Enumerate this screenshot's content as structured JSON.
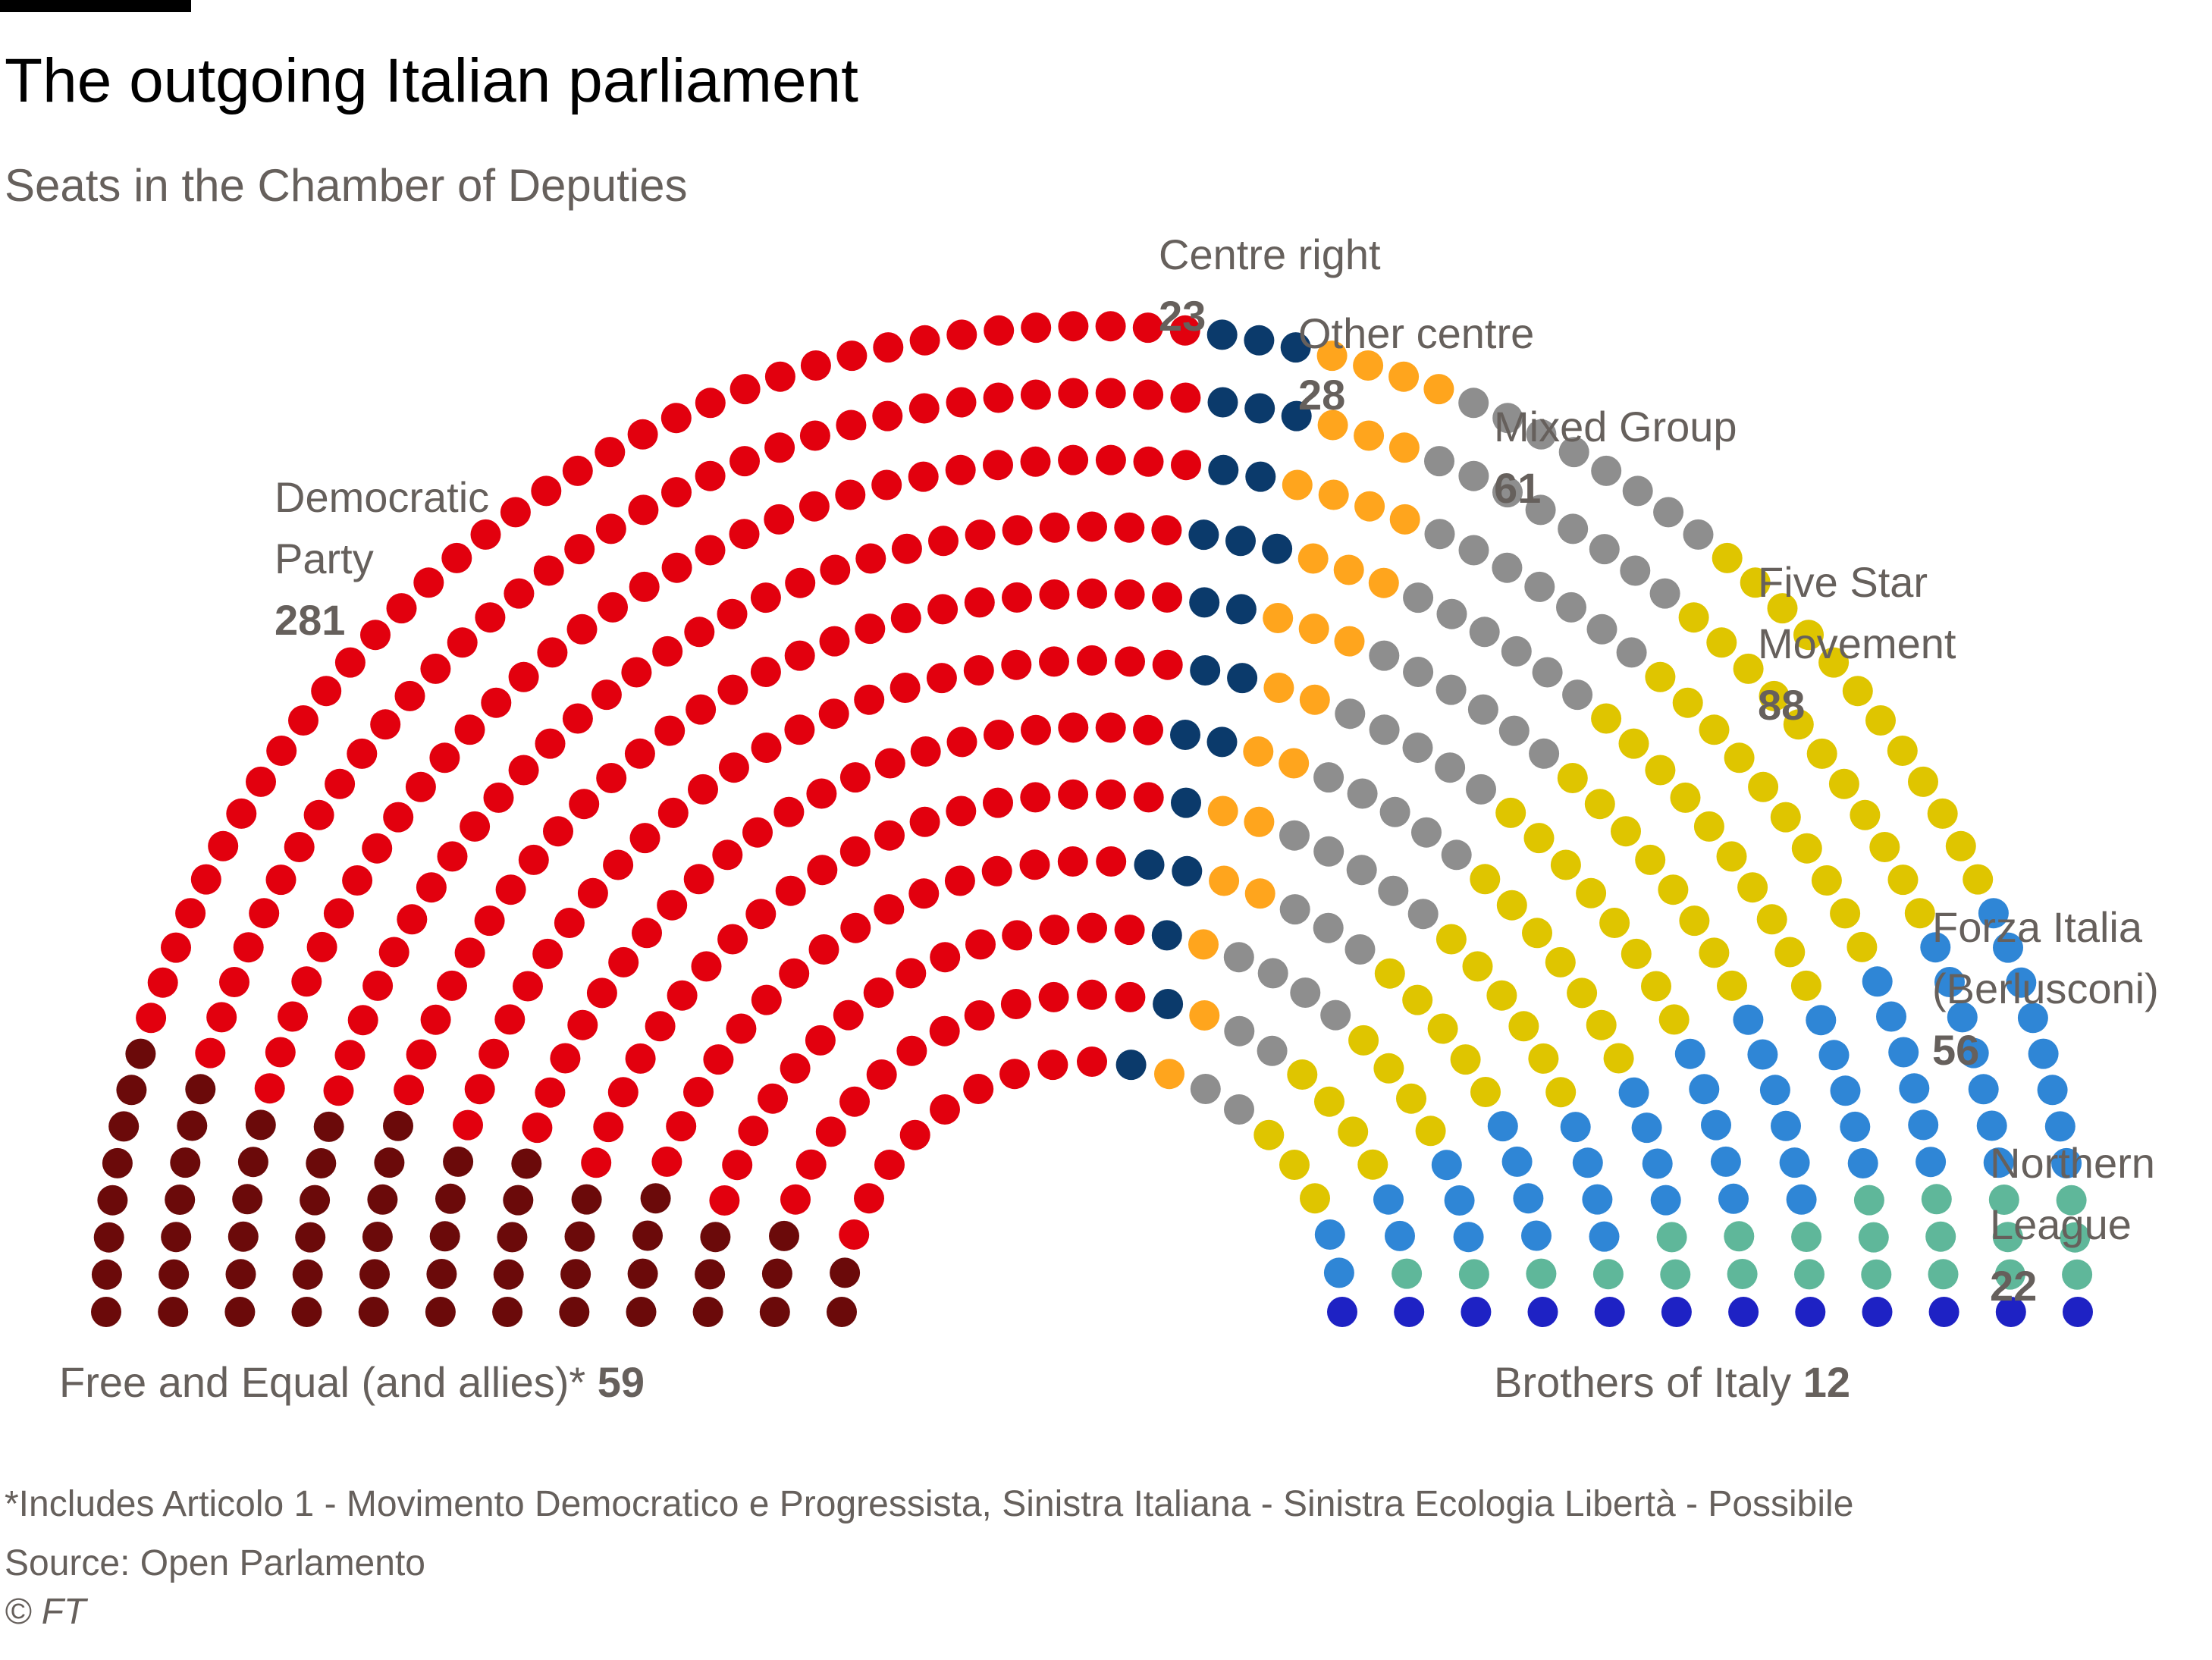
{
  "title": "The outgoing Italian parliament",
  "subtitle": "Seats in the Chamber of Deputies",
  "chart_data": {
    "type": "parliament",
    "total_seats": 630,
    "parties": [
      {
        "label_lines": [
          "Free and Equal (and allies)*"
        ],
        "seats": 59,
        "color": "#6b0a0a"
      },
      {
        "label_lines": [
          "Democratic",
          "Party"
        ],
        "seats": 281,
        "color": "#e2000e"
      },
      {
        "label_lines": [
          "Centre right"
        ],
        "seats": 23,
        "color": "#0b3a6b"
      },
      {
        "label_lines": [
          "Other centre"
        ],
        "seats": 28,
        "color": "#ffa51d"
      },
      {
        "label_lines": [
          "Mixed Group"
        ],
        "seats": 61,
        "color": "#8e8e8e"
      },
      {
        "label_lines": [
          "Five Star",
          "Movement"
        ],
        "seats": 88,
        "color": "#dfc500"
      },
      {
        "label_lines": [
          "Forza Italia",
          "(Berlusconi)"
        ],
        "seats": 56,
        "color": "#2f86d6"
      },
      {
        "label_lines": [
          "Northern",
          "League"
        ],
        "seats": 22,
        "color": "#5fb79a"
      },
      {
        "label_lines": [
          "Brothers of Italy"
        ],
        "seats": 12,
        "color": "#1e22c4"
      }
    ]
  },
  "footnote": "*Includes Articolo 1 - Movimento Democratico e Progressista, Sinistra Italiana - Sinistra Ecologia Libertà - Possibile",
  "source": "Source: Open Parlamento",
  "credit": "© FT"
}
